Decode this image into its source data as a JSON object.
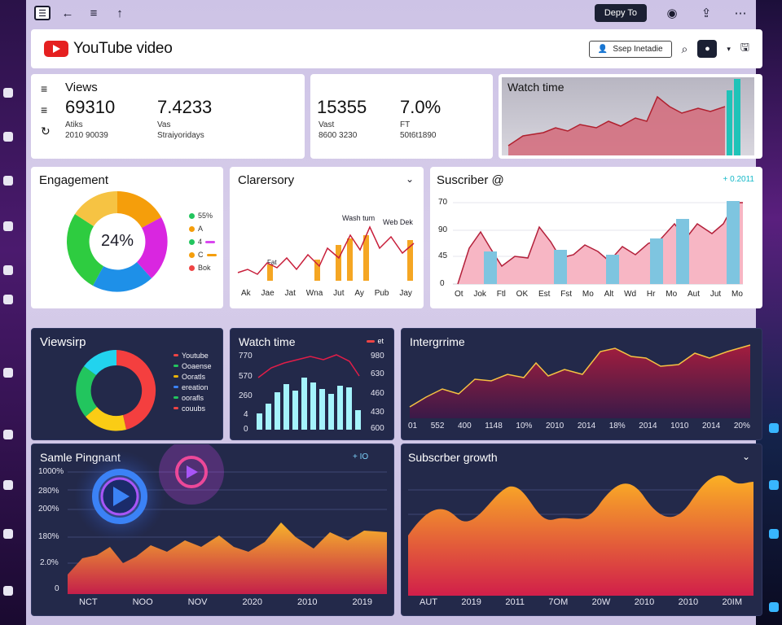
{
  "topbar": {
    "menu_icon": "menu-icon",
    "back_icon": "arrow-left-icon",
    "list_icon": "list-icon",
    "up_icon": "arrow-up-icon",
    "deploy_label": "Depy To",
    "record_icon": "record-icon",
    "share_icon": "share-icon",
    "more_icon": "more-icon"
  },
  "header": {
    "brand": "YouTube video",
    "settings_label": "Ssep Inetadie",
    "search_icon": "search-icon",
    "drop_icon": "drop-icon",
    "save_icon": "save-icon"
  },
  "views_card": {
    "title": "Views",
    "value1": "69310",
    "sub1a": "Atiks",
    "sub1b": "2010 90039",
    "value2": "7.4233",
    "sub2a": "Vas",
    "sub2b": "Straiyoridays"
  },
  "stats_card": {
    "value1": "15355",
    "sub1a": "Vast",
    "sub1b": "8600 3230",
    "value2": "7.0%",
    "sub2a": "FT",
    "sub2b": "50t6t1890"
  },
  "watch_card": {
    "title": "Watch time"
  },
  "engagement": {
    "title": "Engagement",
    "center": "24%",
    "legend": [
      {
        "label": "55%",
        "color": "#22c55e"
      },
      {
        "label": "A",
        "color": "#f59e0b"
      },
      {
        "label": "4",
        "color": "#d946ef"
      },
      {
        "label": "C",
        "color": "#f59e0b"
      },
      {
        "label": "Bok",
        "color": "#ef4444"
      }
    ]
  },
  "clarersory": {
    "title": "Clarersory",
    "annotation1": "Wash tum",
    "annotation2": "Web Dek",
    "annotation3": "Fat",
    "x_labels": [
      "Ak",
      "Jae",
      "Jat",
      "Wna",
      "Jut",
      "Ay",
      "Pub",
      "Jay"
    ]
  },
  "subscriber": {
    "title": "Suscriber @",
    "badge": "+ 0.2011",
    "y_labels": [
      "70",
      "90",
      "45",
      "0"
    ],
    "x_labels": [
      "Ot",
      "Jok",
      "Ftl",
      "OK",
      "Est",
      "Fst",
      "Mo",
      "Alt",
      "Wd",
      "Hr",
      "Mo",
      "Aut",
      "Jut",
      "Mo"
    ]
  },
  "viewsirp": {
    "title": "Viewsirp",
    "legend": [
      {
        "label": "Youtube",
        "color": "#ef4444"
      },
      {
        "label": "Ooaense",
        "color": "#22c55e"
      },
      {
        "label": "Ooratls",
        "color": "#eab308"
      },
      {
        "label": "ereation",
        "color": "#3b82f6"
      },
      {
        "label": "oorafls",
        "color": "#22c55e"
      },
      {
        "label": "couubs",
        "color": "#ef4444"
      }
    ]
  },
  "watch_dark": {
    "title": "Watch time",
    "legend_label": "et",
    "y_left": [
      "770",
      "570",
      "260",
      "4",
      "0"
    ],
    "y_right": [
      "980",
      "630",
      "460",
      "430",
      "600"
    ]
  },
  "intergrime": {
    "title": "Intergrrime",
    "x_labels": [
      "01",
      "552",
      "400",
      "1148",
      "10%",
      "2010",
      "2014",
      "18%",
      "2014",
      "1010",
      "2014",
      "20%"
    ]
  },
  "sample": {
    "title": "Samle Pingnant",
    "badge": "+ IO",
    "y_labels": [
      "1000%",
      "280%",
      "200%",
      "180%",
      "2.0%",
      "0"
    ],
    "x_labels": [
      "NCT",
      "NOO",
      "NOV",
      "2020",
      "2010",
      "2019"
    ]
  },
  "growth": {
    "title": "Subscrber growth",
    "x_labels": [
      "AUT",
      "2019",
      "2011",
      "7OM",
      "20W",
      "2010",
      "2010",
      "20IM"
    ]
  },
  "colors": {
    "dark_panel": "#23294a",
    "accent_red": "#e52020",
    "deploy_bg": "#1b2033"
  }
}
